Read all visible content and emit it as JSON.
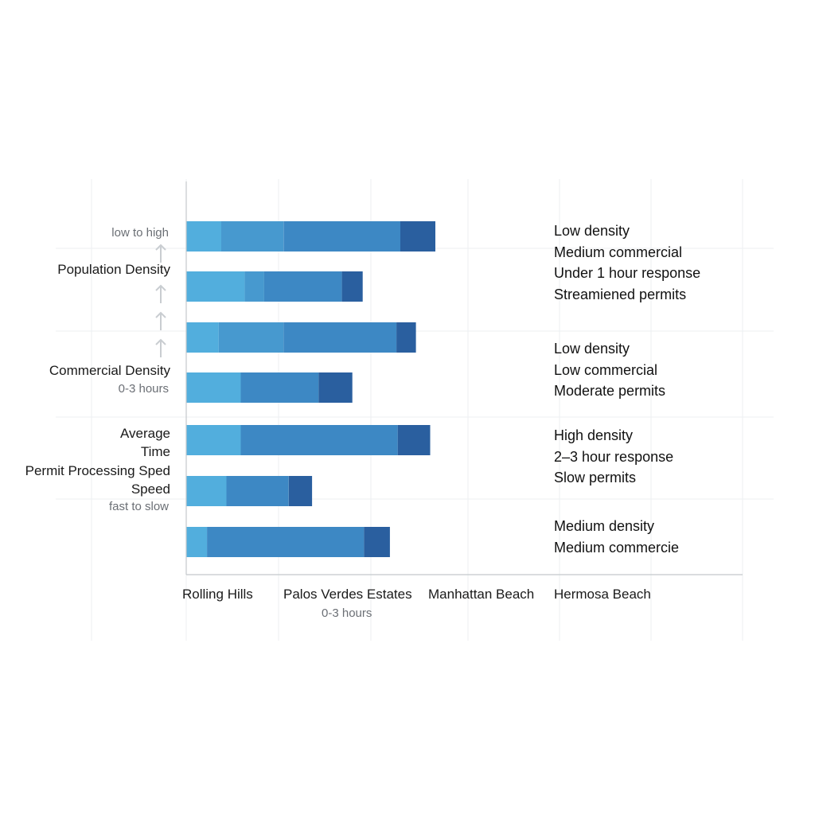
{
  "chart_data": {
    "type": "bar",
    "orientation": "horizontal",
    "stacked": true,
    "grid": true,
    "y_labels": {
      "top_sub": "low to high",
      "population": "Population Density",
      "commercial": "Commercial Density",
      "commercial_sub": "0-3 hours",
      "average": "Average",
      "time": "Time",
      "permit": "Permit Processing Sped",
      "speed": "Speed",
      "speed_sub": "fast to slow"
    },
    "x_labels": [
      "Rolling Hills",
      "Palos Verdes Estates",
      "Manhattan Beach",
      "Hermosa Beach"
    ],
    "x_sub": "0-3 hours",
    "annotations": [
      [
        "Low density",
        "Medium commercial",
        "Under 1 hour response",
        "Streamiened permits"
      ],
      [
        "Low density",
        "Low commercial",
        "Moderate permits"
      ],
      [
        "High density",
        "2–3 hour response",
        "Slow permits"
      ],
      [
        "Medium density",
        "Medium commercie"
      ]
    ],
    "colors": [
      "#52aedd",
      "#4799cf",
      "#3d88c4",
      "#2a5f9f"
    ],
    "bars": [
      [
        2.7,
        4.8,
        9.0,
        2.7
      ],
      [
        4.5,
        1.5,
        6.0,
        1.6
      ],
      [
        2.5,
        5.0,
        8.7,
        1.5
      ],
      [
        4.2,
        0,
        6.0,
        2.6
      ],
      [
        4.2,
        0,
        12.1,
        2.5
      ],
      [
        3.1,
        0,
        4.8,
        1.8
      ],
      [
        1.6,
        0,
        12.1,
        2.0
      ]
    ],
    "xlim": [
      0,
      30
    ]
  }
}
